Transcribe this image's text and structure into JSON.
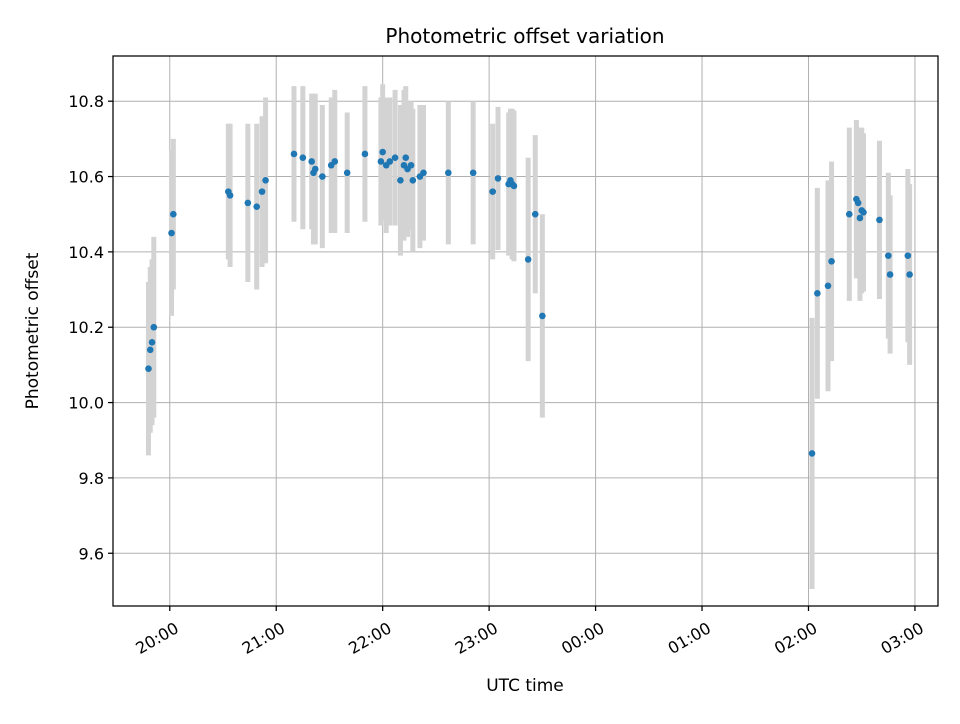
{
  "chart_data": {
    "type": "scatter",
    "title": "Photometric offset variation",
    "xlabel": "UTC time",
    "ylabel": "Photometric offset",
    "x_tick_labels": [
      "20:00",
      "21:00",
      "22:00",
      "23:00",
      "00:00",
      "01:00",
      "02:00",
      "03:00"
    ],
    "y_tick_labels": [
      "9.6",
      "9.8",
      "10.0",
      "10.2",
      "10.4",
      "10.6",
      "10.8"
    ],
    "xlim": [
      "19:28",
      "03:13"
    ],
    "ylim": [
      9.46,
      10.92
    ],
    "grid": true,
    "marker_color": "#1f77b4",
    "errorbar_color": "#d3d3d3",
    "series": [
      {
        "x": [
          "19:48",
          "19:49",
          "19:50",
          "19:51",
          "20:01",
          "20:02",
          "20:33",
          "20:34",
          "20:44",
          "20:49",
          "20:52",
          "20:54",
          "21:10",
          "21:15",
          "21:20",
          "21:21",
          "21:22",
          "21:26",
          "21:31",
          "21:33",
          "21:40",
          "21:50",
          "21:59",
          "22:00",
          "22:02",
          "22:04",
          "22:07",
          "22:10",
          "22:12",
          "22:13",
          "22:14",
          "22:16",
          "22:17",
          "22:21",
          "22:23",
          "22:37",
          "22:51",
          "23:02",
          "23:05",
          "23:11",
          "23:12",
          "23:13",
          "23:14",
          "23:22",
          "23:26",
          "23:30",
          "02:02",
          "02:05",
          "02:11",
          "02:13",
          "02:23",
          "02:27",
          "02:28",
          "02:29",
          "02:30",
          "02:31",
          "02:40",
          "02:45",
          "02:46",
          "02:56",
          "02:57"
        ],
        "y": [
          10.09,
          10.14,
          10.16,
          10.2,
          10.45,
          10.5,
          10.56,
          10.55,
          10.53,
          10.52,
          10.56,
          10.59,
          10.66,
          10.65,
          10.64,
          10.61,
          10.62,
          10.6,
          10.63,
          10.64,
          10.61,
          10.66,
          10.64,
          10.665,
          10.63,
          10.64,
          10.65,
          10.59,
          10.63,
          10.65,
          10.62,
          10.63,
          10.59,
          10.6,
          10.61,
          10.61,
          10.61,
          10.56,
          10.595,
          10.58,
          10.59,
          10.58,
          10.575,
          10.38,
          10.5,
          10.23,
          9.865,
          10.29,
          10.31,
          10.375,
          10.5,
          10.54,
          10.53,
          10.49,
          10.51,
          10.505,
          10.485,
          10.39,
          10.34,
          10.39,
          10.34
        ],
        "y_err": [
          0.23,
          0.22,
          0.22,
          0.24,
          0.22,
          0.2,
          0.18,
          0.19,
          0.21,
          0.22,
          0.2,
          0.22,
          0.18,
          0.19,
          0.18,
          0.19,
          0.2,
          0.19,
          0.18,
          0.19,
          0.16,
          0.18,
          0.17,
          0.18,
          0.18,
          0.17,
          0.18,
          0.2,
          0.2,
          0.19,
          0.18,
          0.17,
          0.19,
          0.19,
          0.18,
          0.19,
          0.19,
          0.18,
          0.19,
          0.19,
          0.19,
          0.2,
          0.2,
          0.27,
          0.21,
          0.27,
          0.36,
          0.28,
          0.28,
          0.265,
          0.23,
          0.21,
          0.2,
          0.22,
          0.22,
          0.21,
          0.21,
          0.22,
          0.21,
          0.23,
          0.24
        ]
      }
    ]
  }
}
